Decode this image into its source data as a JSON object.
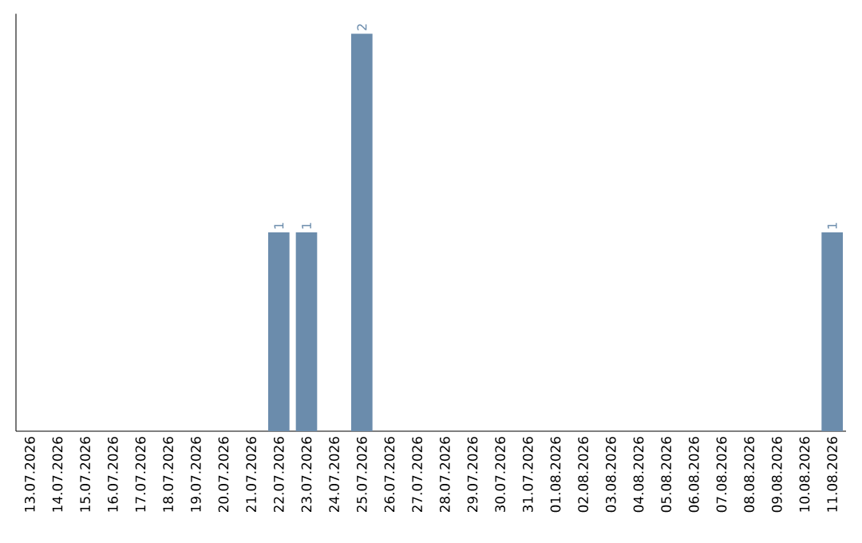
{
  "chart_data": {
    "type": "bar",
    "categories": [
      "13.07.2026",
      "14.07.2026",
      "15.07.2026",
      "16.07.2026",
      "17.07.2026",
      "18.07.2026",
      "19.07.2026",
      "20.07.2026",
      "21.07.2026",
      "22.07.2026",
      "23.07.2026",
      "24.07.2026",
      "25.07.2026",
      "26.07.2026",
      "27.07.2026",
      "28.07.2026",
      "29.07.2026",
      "30.07.2026",
      "31.07.2026",
      "01.08.2026",
      "02.08.2026",
      "03.08.2026",
      "04.08.2026",
      "05.08.2026",
      "06.08.2026",
      "07.08.2026",
      "08.08.2026",
      "09.08.2026",
      "10.08.2026",
      "11.08.2026"
    ],
    "values": [
      0,
      0,
      0,
      0,
      0,
      0,
      0,
      0,
      0,
      1,
      1,
      0,
      2,
      0,
      0,
      0,
      0,
      0,
      0,
      0,
      0,
      0,
      0,
      0,
      0,
      0,
      0,
      0,
      0,
      1
    ],
    "value_labels": [
      null,
      null,
      null,
      null,
      null,
      null,
      null,
      null,
      null,
      "1",
      "1",
      null,
      "2",
      null,
      null,
      null,
      null,
      null,
      null,
      null,
      null,
      null,
      null,
      null,
      null,
      null,
      null,
      null,
      null,
      "1"
    ],
    "color": "#6b8cac",
    "grid": false
  }
}
